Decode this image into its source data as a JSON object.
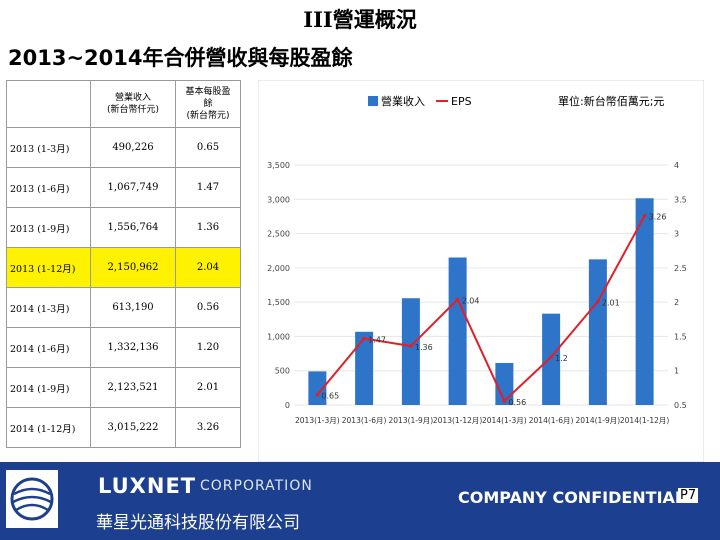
{
  "header": {
    "section_title": "III營運概況",
    "slide_title": "2013~2014年合併營收與每股盈餘"
  },
  "table": {
    "col_revenue": "營業收入\n(新台幣仟元)",
    "col_eps": "基本每股盈\n餘\n(新台幣元)",
    "rows": [
      {
        "period": "2013 (1-3月)",
        "revenue": "490,226",
        "eps": "0.65"
      },
      {
        "period": "2013 (1-6月)",
        "revenue": "1,067,749",
        "eps": "1.47"
      },
      {
        "period": "2013 (1-9月)",
        "revenue": "1,556,764",
        "eps": "1.36"
      },
      {
        "period": "2013 (1-12月)",
        "revenue": "2,150,962",
        "eps": "2.04"
      },
      {
        "period": "2014 (1-3月)",
        "revenue": "613,190",
        "eps": "0.56"
      },
      {
        "period": "2014 (1-6月)",
        "revenue": "1,332,136",
        "eps": "1.20"
      },
      {
        "period": "2014 (1-9月)",
        "revenue": "2,123,521",
        "eps": "2.01"
      },
      {
        "period": "2014 (1-12月)",
        "revenue": "3,015,222",
        "eps": "3.26"
      }
    ]
  },
  "chart_data": {
    "type": "bar",
    "categories": [
      "2013(1-3月)",
      "2013(1-6月)",
      "2013(1-9月)",
      "2013(1-12月)",
      "2014(1-3月)",
      "2014(1-6月)",
      "2014(1-9月)",
      "2014(1-12月)"
    ],
    "series": [
      {
        "name": "營業收入",
        "type": "bar",
        "axis": "left",
        "values": [
          490,
          1068,
          1557,
          2151,
          613,
          1332,
          2124,
          3015
        ]
      },
      {
        "name": "EPS",
        "type": "line",
        "axis": "right",
        "values": [
          0.65,
          1.47,
          1.36,
          2.04,
          0.56,
          1.2,
          2.01,
          3.26
        ]
      }
    ],
    "line_labels": [
      "0.65",
      "1.47",
      "1.36",
      "2.04",
      "0.56",
      "1.2",
      "2.01",
      "3.26"
    ],
    "unit_note": "單位:新台幣佰萬元;元",
    "ylim_left": [
      0,
      3500
    ],
    "ylim_right": [
      0.5,
      4
    ],
    "yticks_left": [
      "0",
      "500",
      "1,000",
      "1,500",
      "2,000",
      "2,500",
      "3,000",
      "3,500"
    ],
    "yticks_right": [
      "0.5",
      "1",
      "1.5",
      "2",
      "2.5",
      "3",
      "3.5",
      "4"
    ],
    "legend": "top",
    "colors": {
      "bar": "#2e74c8",
      "line": "#e0202a"
    }
  },
  "footer": {
    "brand": "LUXNET",
    "brand_sub": "CORPORATION",
    "company_cn": "華星光通科技股份有限公司",
    "confidential": "COMPANY CONFIDENTIAL",
    "page": "P7",
    "colors": {
      "background": "#1c3f8f"
    }
  }
}
